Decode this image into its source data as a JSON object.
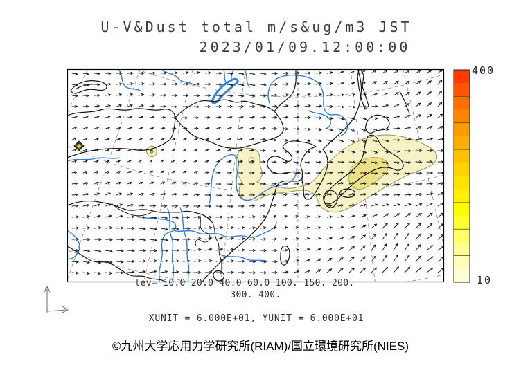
{
  "title": {
    "line1": "U-V&Dust total m/s&ug/m3 JST",
    "line2": "2023/01/09.12:00:00"
  },
  "legend": {
    "levels_line1": "lev= 10.0 20.0 40.0 60.0 100. 150. 200.",
    "levels_line2": "300. 400.",
    "units_line": "XUNIT = 6.000E+01, YUNIT = 6.000E+01"
  },
  "colorbar": {
    "max_label": "400",
    "min_label": "10",
    "colors": [
      "#ff3a00",
      "#ff5400",
      "#ff6f00",
      "#ff8500",
      "#ff9b00",
      "#ffae00",
      "#ffc100",
      "#ffd300",
      "#ffe200",
      "#ffef00",
      "#fffb00",
      "#ffff2e",
      "#ffff66",
      "#ffff94",
      "#ffffba",
      "#ffffd6"
    ]
  },
  "footer": {
    "copyright": "©九州大学応用力学研究所(RIAM)/国立環境研究所(NIES)"
  },
  "colors": {
    "dust_fill": "#f6f2c6",
    "dust_fill_inner": "#ece189",
    "dust_outline": "#97914f",
    "river": "#2f7fdd",
    "coast": "#141414"
  },
  "chart_data": {
    "type": "heatmap",
    "title": "U-V&Dust total m/s&ug/m3 JST",
    "timestamp_jst": "2023/01/09.12:00:00",
    "variables": {
      "wind": "U-V (m/s)",
      "dust": "total dust (ug/m3)"
    },
    "contour_levels": [
      10.0,
      20.0,
      40.0,
      60.0,
      100,
      150,
      200,
      300,
      400
    ],
    "colorbar": {
      "min": 10,
      "max": 400,
      "orientation": "vertical",
      "position": "right"
    },
    "xunit": "6.000E+01",
    "yunit": "6.000E+01",
    "region": "East Asia",
    "overlays": [
      "wind vector field",
      "dust concentration shading",
      "coastlines and borders",
      "rivers",
      "dashed graticule"
    ],
    "vector_grid": {
      "cols": 34,
      "rows": 19,
      "spacing_px": 16
    }
  }
}
